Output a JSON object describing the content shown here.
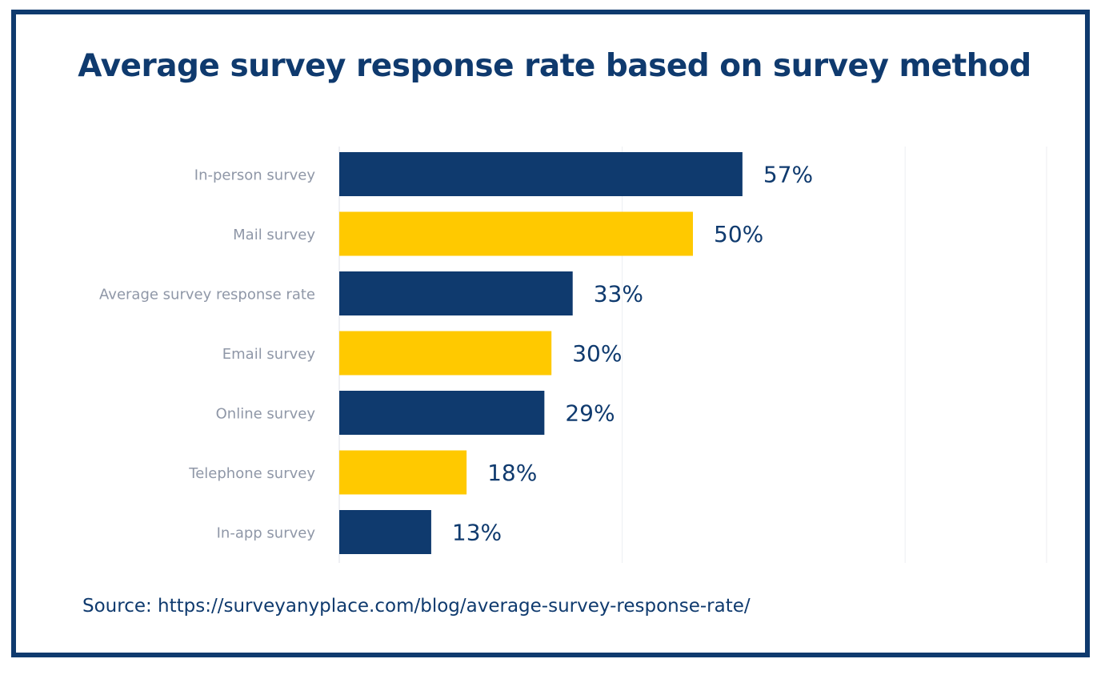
{
  "title": "Average survey response rate based on survey method",
  "source": "Source: https://surveyanyplace.com/blog/average-survey-response-rate/",
  "colors": {
    "frame": "#0f3a6e",
    "navy": "#0f3a6e",
    "yellow": "#ffc900",
    "label": "#8f97a7",
    "grid": "#eceef2"
  },
  "chart_data": {
    "type": "bar",
    "orientation": "horizontal",
    "title": "Average survey response rate based on survey method",
    "categories": [
      "In-person survey",
      "Mail survey",
      "Average survey response rate",
      "Email survey",
      "Online survey",
      "Telephone survey",
      "In-app survey"
    ],
    "values": [
      57,
      50,
      33,
      30,
      29,
      18,
      13
    ],
    "value_labels": [
      "57%",
      "50%",
      "33%",
      "30%",
      "29%",
      "18%",
      "13%"
    ],
    "bar_colors": [
      "#0f3a6e",
      "#ffc900",
      "#0f3a6e",
      "#ffc900",
      "#0f3a6e",
      "#ffc900",
      "#0f3a6e"
    ],
    "xlim": [
      0,
      100
    ],
    "gridlines": [
      0,
      40,
      80,
      100
    ],
    "grid": true,
    "legend": "none"
  }
}
